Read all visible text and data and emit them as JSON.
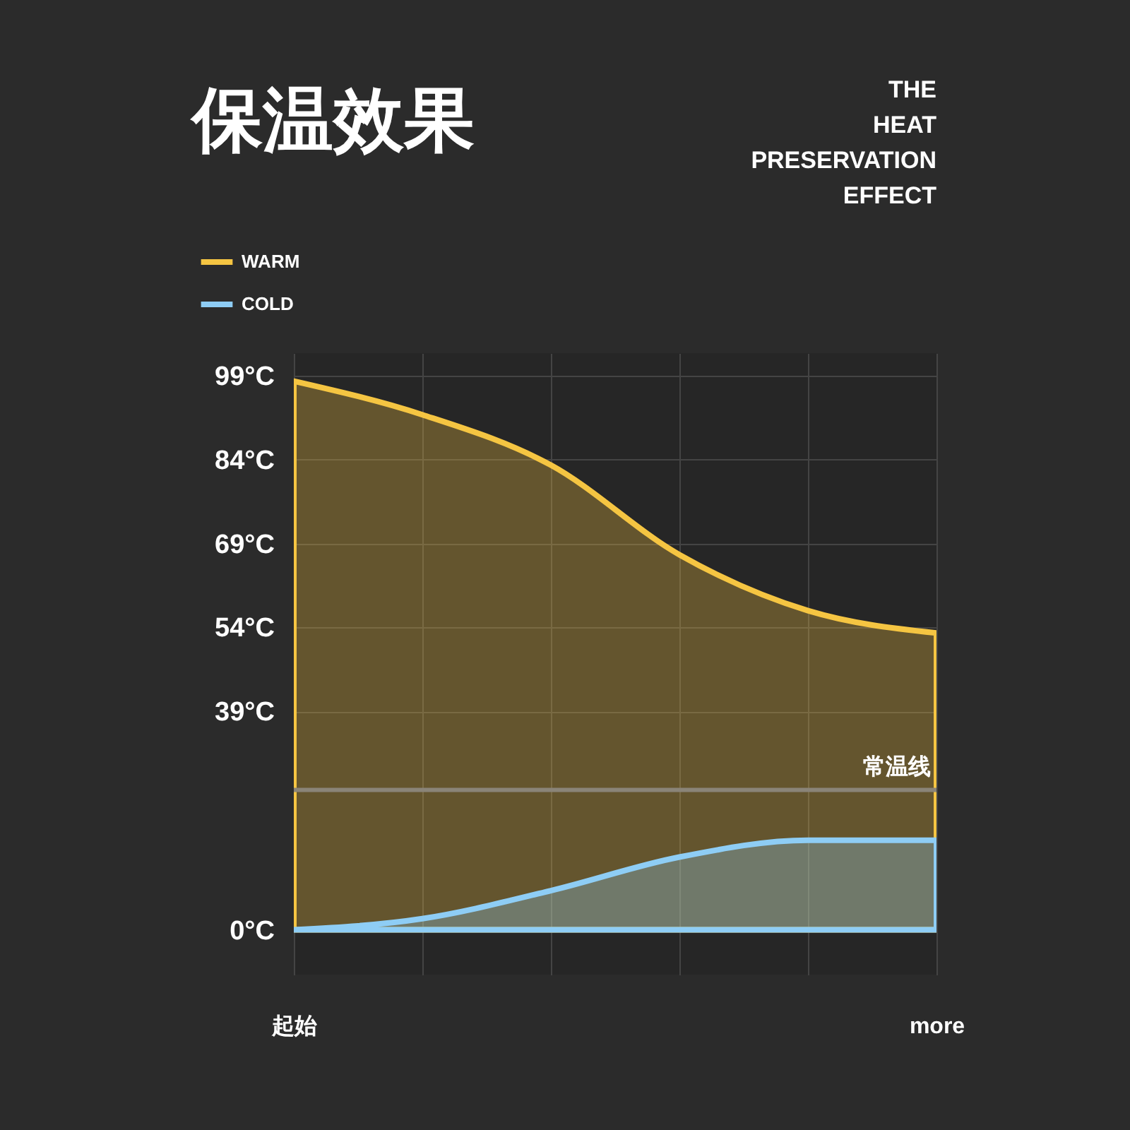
{
  "chart_data": {
    "type": "area",
    "title": "保温效果",
    "subtitle": "THE HEAT PRESERVATION EFFECT",
    "categories": [
      "起始",
      null,
      null,
      null,
      null,
      "more"
    ],
    "series": [
      {
        "name": "WARM",
        "color": "#f5c542",
        "values": [
          98,
          92,
          83,
          67,
          57,
          53
        ]
      },
      {
        "name": "COLD",
        "color": "#8ecdf5",
        "values": [
          0,
          2,
          7,
          13,
          16,
          16
        ]
      }
    ],
    "ylim": [
      -8,
      103
    ],
    "yticks": [
      {
        "value": 0,
        "label": "0°C"
      },
      {
        "value": 39,
        "label": "39°C"
      },
      {
        "value": 54,
        "label": "54°C"
      },
      {
        "value": 69,
        "label": "69°C"
      },
      {
        "value": 84,
        "label": "84°C"
      },
      {
        "value": 99,
        "label": "99°C"
      }
    ],
    "ref_lines": [
      {
        "axis": "y",
        "value": 25,
        "label": "常温线",
        "color": "#8a8478"
      }
    ],
    "grid": true,
    "legend": "top left"
  }
}
